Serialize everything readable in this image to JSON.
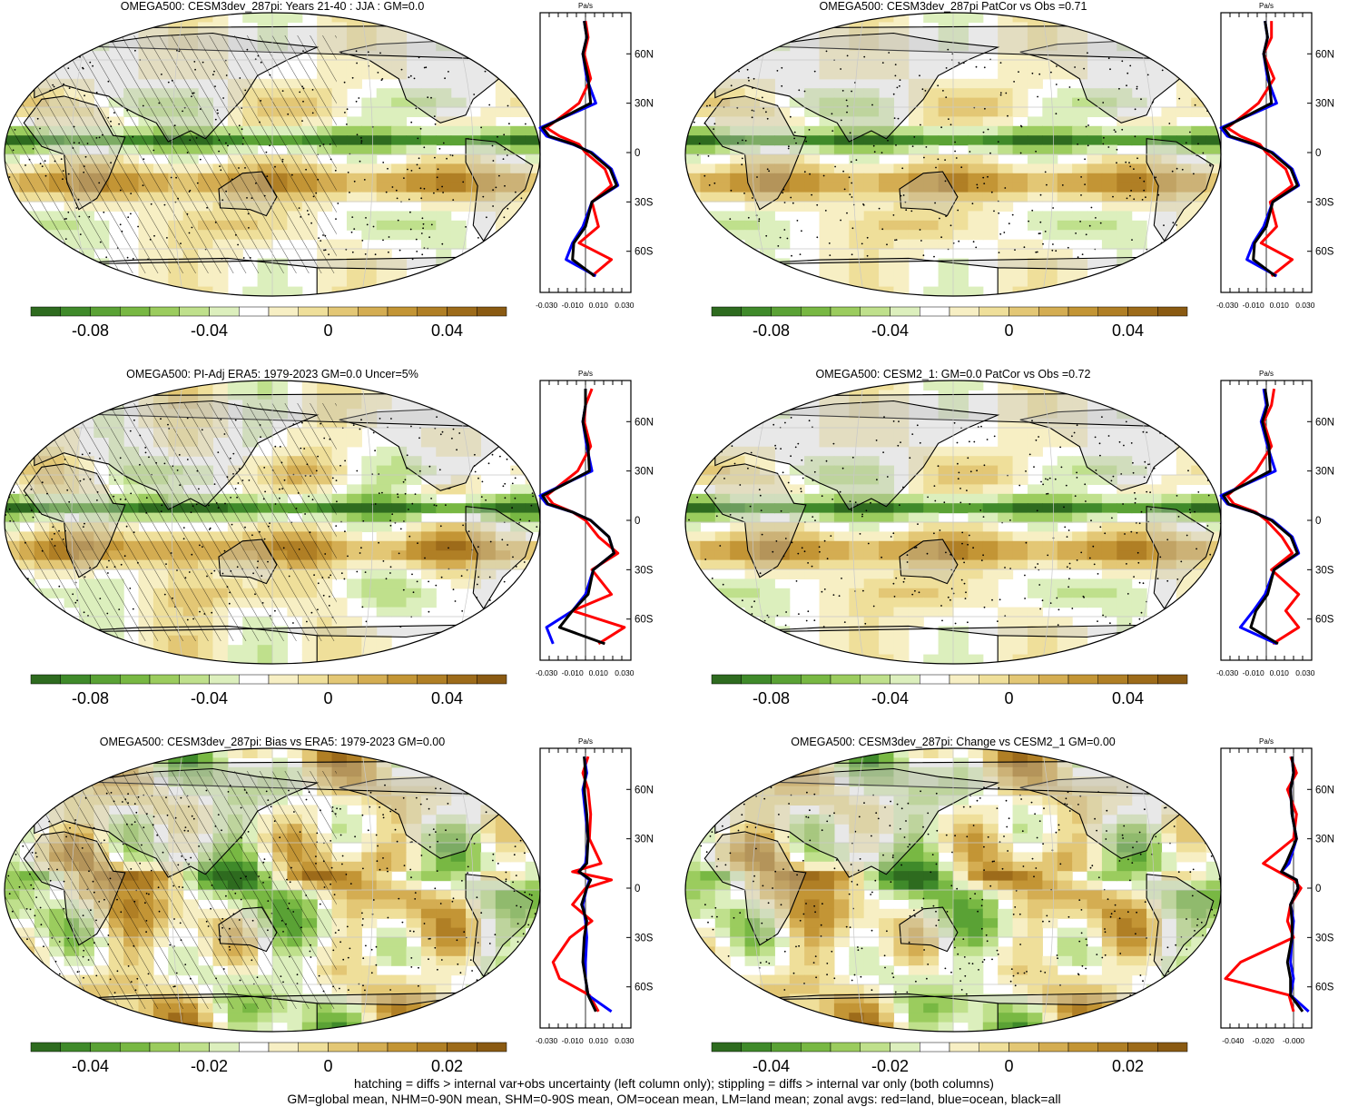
{
  "panels": [
    {
      "title": "OMEGA500: CESM3dev_287pi: Years 21-40 : JJA : GM=0.0",
      "hatching": true,
      "pattern": "model",
      "colorbar_ticks": [
        "-0.08",
        "-0.04",
        "0",
        "0.04",
        "0.08"
      ],
      "colorbar_range": [
        -0.11,
        0.11
      ],
      "zonal": {
        "unit": "Pa/s",
        "xticks": [
          "-0.030",
          "-0.010",
          "0.010",
          "0.030"
        ],
        "xlim": [
          -0.035,
          0.035
        ]
      }
    },
    {
      "title": "OMEGA500: CESM3dev_287pi PatCor vs Obs =0.71",
      "hatching": false,
      "pattern": "model",
      "colorbar_ticks": [
        "-0.08",
        "-0.04",
        "0",
        "0.04",
        "0.08"
      ],
      "colorbar_range": [
        -0.11,
        0.11
      ],
      "zonal": {
        "unit": "Pa/s",
        "xticks": [
          "-0.030",
          "-0.010",
          "0.010",
          "0.030"
        ],
        "xlim": [
          -0.035,
          0.035
        ]
      }
    },
    {
      "title": "OMEGA500: PI-Adj ERA5: 1979-2023 GM=0.0 Uncer=5%",
      "hatching": true,
      "pattern": "obs",
      "colorbar_ticks": [
        "-0.08",
        "-0.04",
        "0",
        "0.04",
        "0.08"
      ],
      "colorbar_range": [
        -0.11,
        0.11
      ],
      "zonal": {
        "unit": "Pa/s",
        "xticks": [
          "-0.030",
          "-0.010",
          "0.010",
          "0.030"
        ],
        "xlim": [
          -0.035,
          0.035
        ]
      }
    },
    {
      "title": "OMEGA500: CESM2_1: GM=0.0 PatCor vs Obs =0.72",
      "hatching": false,
      "pattern": "model",
      "colorbar_ticks": [
        "-0.08",
        "-0.04",
        "0",
        "0.04",
        "0.08"
      ],
      "colorbar_range": [
        -0.11,
        0.11
      ],
      "zonal": {
        "unit": "Pa/s",
        "xticks": [
          "-0.030",
          "-0.010",
          "0.010",
          "0.030"
        ],
        "xlim": [
          -0.035,
          0.035
        ]
      }
    },
    {
      "title": "OMEGA500: CESM3dev_287pi: Bias vs ERA5: 1979-2023 GM=0.00",
      "hatching": true,
      "pattern": "bias",
      "colorbar_ticks": [
        "-0.04",
        "-0.02",
        "0",
        "0.02",
        "0.04"
      ],
      "colorbar_range": [
        -0.055,
        0.055
      ],
      "zonal": {
        "unit": "Pa/s",
        "xticks": [
          "-0.030",
          "-0.010",
          "0.010",
          "0.030"
        ],
        "xlim": [
          -0.035,
          0.035
        ]
      }
    },
    {
      "title": "OMEGA500: CESM3dev_287pi: Change vs CESM2_1 GM=0.00",
      "hatching": false,
      "pattern": "bias",
      "colorbar_ticks": [
        "-0.04",
        "-0.02",
        "0",
        "0.02",
        "0.04"
      ],
      "colorbar_range": [
        -0.055,
        0.055
      ],
      "zonal": {
        "unit": "Pa/s",
        "xticks": [
          "-0.040",
          "-0.020",
          "-0.000"
        ],
        "xlim": [
          -0.048,
          0.012
        ]
      }
    }
  ],
  "zonal_yticks": [
    "60N",
    "30N",
    "0",
    "30S",
    "60S"
  ],
  "legend_colors": {
    "land": "#ff0000",
    "ocean": "#0000ff",
    "all": "#000000"
  },
  "footer": {
    "line1": "hatching = diffs > internal var+obs uncertainty (left column only); stippling = diffs > internal var only (both columns)",
    "line2": "GM=global mean, NHM=0-90N mean, SHM=0-90S mean, OM=ocean mean, LM=land mean; zonal avgs: red=land, blue=ocean, black=all"
  },
  "chart_data": [
    {
      "type": "heatmap",
      "title": "OMEGA500: CESM3dev_287pi: Years 21-40 : JJA : GM=0.0",
      "colorbar_ticks": [
        -0.08,
        -0.04,
        0,
        0.04,
        0.08
      ],
      "zonal_mean_series": [
        {
          "name": "land",
          "color": "red",
          "lat": [
            80,
            70,
            60,
            45,
            30,
            15,
            10,
            5,
            0,
            -10,
            -20,
            -30,
            -45,
            -55,
            -65,
            -75
          ],
          "values": [
            0.0,
            0.002,
            -0.001,
            0.004,
            -0.005,
            -0.03,
            -0.02,
            -0.005,
            0.0,
            0.015,
            0.02,
            0.005,
            0.01,
            -0.005,
            0.02,
            0.005
          ]
        },
        {
          "name": "ocean",
          "color": "blue",
          "lat": [
            80,
            70,
            60,
            45,
            30,
            15,
            10,
            5,
            0,
            -10,
            -20,
            -30,
            -45,
            -55,
            -65,
            -75
          ],
          "values": [
            -0.001,
            0.001,
            -0.002,
            0.001,
            0.008,
            -0.035,
            -0.03,
            -0.01,
            0.005,
            0.02,
            0.025,
            0.005,
            -0.002,
            -0.01,
            -0.015,
            0.008
          ]
        },
        {
          "name": "all",
          "color": "black",
          "lat": [
            80,
            70,
            60,
            45,
            30,
            15,
            10,
            5,
            0,
            -10,
            -20,
            -30,
            -45,
            -55,
            -65,
            -75
          ],
          "values": [
            -0.001,
            0.001,
            -0.002,
            0.002,
            0.004,
            -0.033,
            -0.028,
            -0.009,
            0.004,
            0.019,
            0.024,
            0.005,
            0.0,
            -0.009,
            -0.01,
            0.007
          ]
        }
      ]
    },
    {
      "type": "heatmap",
      "title": "OMEGA500: CESM3dev_287pi PatCor vs Obs =0.71",
      "colorbar_ticks": [
        -0.08,
        -0.04,
        0,
        0.04,
        0.08
      ],
      "zonal_mean_series": [
        {
          "name": "land",
          "color": "red",
          "lat": [
            80,
            70,
            60,
            45,
            30,
            15,
            10,
            5,
            0,
            -10,
            -20,
            -30,
            -45,
            -55,
            -65,
            -75
          ],
          "values": [
            0.004,
            0.004,
            -0.002,
            0.006,
            -0.006,
            -0.03,
            -0.02,
            -0.005,
            0.0,
            0.015,
            0.02,
            0.003,
            0.008,
            -0.004,
            0.02,
            0.004
          ]
        },
        {
          "name": "ocean",
          "color": "blue",
          "lat": [
            80,
            70,
            60,
            45,
            30,
            15,
            10,
            5,
            0,
            -10,
            -20,
            -30,
            -45,
            -55,
            -65,
            -75
          ],
          "values": [
            -0.001,
            0.001,
            -0.002,
            0.001,
            0.008,
            -0.035,
            -0.03,
            -0.01,
            0.005,
            0.02,
            0.025,
            0.005,
            -0.002,
            -0.01,
            -0.015,
            0.008
          ]
        },
        {
          "name": "all",
          "color": "black",
          "lat": [
            80,
            70,
            60,
            45,
            30,
            15,
            10,
            5,
            0,
            -10,
            -20,
            -30,
            -45,
            -55,
            -65,
            -75
          ],
          "values": [
            -0.001,
            0.001,
            -0.002,
            0.002,
            0.004,
            -0.033,
            -0.028,
            -0.009,
            0.004,
            0.019,
            0.024,
            0.005,
            0.0,
            -0.009,
            -0.01,
            0.007
          ]
        }
      ]
    },
    {
      "type": "heatmap",
      "title": "OMEGA500: PI-Adj ERA5: 1979-2023 GM=0.0 Uncer=5%",
      "colorbar_ticks": [
        -0.08,
        -0.04,
        0,
        0.04,
        0.08
      ],
      "zonal_mean_series": [
        {
          "name": "land",
          "color": "red",
          "lat": [
            80,
            70,
            60,
            45,
            30,
            15,
            10,
            5,
            0,
            -10,
            -20,
            -30,
            -45,
            -55,
            -65,
            -75
          ],
          "values": [
            0.005,
            0.0,
            -0.001,
            0.004,
            -0.006,
            -0.03,
            -0.025,
            -0.01,
            0.0,
            0.01,
            0.025,
            0.005,
            0.02,
            -0.01,
            0.03,
            0.01
          ]
        },
        {
          "name": "ocean",
          "color": "blue",
          "lat": [
            80,
            70,
            60,
            45,
            30,
            15,
            10,
            5,
            0,
            -10,
            -20,
            -30,
            -45,
            -55,
            -65,
            -75
          ],
          "values": [
            0.0,
            0.0,
            -0.002,
            0.001,
            0.005,
            -0.035,
            -0.03,
            -0.01,
            0.004,
            0.018,
            0.022,
            0.006,
            0.0,
            -0.01,
            -0.03,
            -0.025
          ]
        },
        {
          "name": "all",
          "color": "black",
          "lat": [
            80,
            70,
            60,
            45,
            30,
            15,
            10,
            5,
            0,
            -10,
            -20,
            -30,
            -45,
            -55,
            -65,
            -75
          ],
          "values": [
            0.0,
            0.0,
            -0.002,
            0.002,
            0.003,
            -0.033,
            -0.029,
            -0.01,
            0.004,
            0.018,
            0.022,
            0.006,
            0.002,
            -0.01,
            -0.02,
            0.015
          ]
        }
      ]
    },
    {
      "type": "heatmap",
      "title": "OMEGA500: CESM2_1: GM=0.0 PatCor vs Obs =0.72",
      "colorbar_ticks": [
        -0.08,
        -0.04,
        0,
        0.04,
        0.08
      ],
      "zonal_mean_series": [
        {
          "name": "land",
          "color": "red",
          "lat": [
            80,
            70,
            60,
            45,
            30,
            15,
            10,
            5,
            0,
            -10,
            -20,
            -30,
            -45,
            -55,
            -65,
            -75
          ],
          "values": [
            0.006,
            0.004,
            -0.002,
            0.004,
            -0.008,
            -0.03,
            -0.025,
            -0.008,
            0.0,
            0.012,
            0.02,
            0.004,
            0.025,
            0.015,
            0.025,
            0.005
          ]
        },
        {
          "name": "ocean",
          "color": "blue",
          "lat": [
            80,
            70,
            60,
            45,
            30,
            15,
            10,
            5,
            0,
            -10,
            -20,
            -30,
            -45,
            -55,
            -65,
            -75
          ],
          "values": [
            -0.002,
            0.0,
            -0.004,
            0.001,
            0.007,
            -0.035,
            -0.03,
            -0.01,
            0.005,
            0.02,
            0.025,
            0.006,
            -0.001,
            -0.01,
            -0.02,
            0.008
          ]
        },
        {
          "name": "all",
          "color": "black",
          "lat": [
            80,
            70,
            60,
            45,
            30,
            15,
            10,
            5,
            0,
            -10,
            -20,
            -30,
            -45,
            -55,
            -65,
            -75
          ],
          "values": [
            -0.001,
            0.001,
            -0.003,
            0.002,
            0.003,
            -0.033,
            -0.029,
            -0.01,
            0.004,
            0.019,
            0.024,
            0.006,
            0.001,
            -0.008,
            -0.012,
            0.009
          ]
        }
      ]
    },
    {
      "type": "heatmap",
      "title": "OMEGA500: CESM3dev_287pi: Bias vs ERA5: 1979-2023 GM=0.00",
      "colorbar_ticks": [
        -0.04,
        -0.02,
        0,
        0.02,
        0.04
      ],
      "zonal_mean_series": [
        {
          "name": "land",
          "color": "red",
          "lat": [
            80,
            70,
            60,
            45,
            30,
            15,
            10,
            5,
            0,
            -10,
            -20,
            -30,
            -45,
            -55,
            -65,
            -75
          ],
          "values": [
            0.002,
            -0.002,
            0.002,
            0.004,
            0.003,
            0.012,
            -0.01,
            0.02,
            0.0,
            -0.01,
            0.005,
            -0.012,
            -0.025,
            -0.02,
            0.003,
            0.01
          ]
        },
        {
          "name": "ocean",
          "color": "blue",
          "lat": [
            80,
            70,
            60,
            45,
            30,
            15,
            10,
            5,
            0,
            -10,
            -20,
            -30,
            -45,
            -55,
            -65,
            -75
          ],
          "values": [
            -0.001,
            0.001,
            -0.002,
            0.0,
            0.002,
            0.0,
            -0.005,
            0.003,
            0.001,
            -0.002,
            0.0,
            0.001,
            0.0,
            0.0,
            0.002,
            0.02
          ]
        },
        {
          "name": "all",
          "color": "black",
          "lat": [
            80,
            70,
            60,
            45,
            30,
            15,
            10,
            5,
            0,
            -10,
            -20,
            -30,
            -45,
            -55,
            -65,
            -75
          ],
          "values": [
            -0.001,
            0.0,
            -0.001,
            0.001,
            0.002,
            0.001,
            -0.005,
            0.004,
            0.001,
            -0.003,
            0.001,
            -0.001,
            -0.002,
            0.0,
            0.002,
            0.008
          ]
        }
      ]
    },
    {
      "type": "heatmap",
      "title": "OMEGA500: CESM3dev_287pi: Change vs CESM2_1 GM=0.00",
      "colorbar_ticks": [
        -0.04,
        -0.02,
        0,
        0.02,
        0.04
      ],
      "zonal_mean_series": [
        {
          "name": "land",
          "color": "red",
          "lat": [
            80,
            70,
            60,
            45,
            30,
            15,
            10,
            5,
            0,
            -10,
            -20,
            -30,
            -45,
            -55,
            -65,
            -75
          ],
          "values": [
            -0.002,
            0.002,
            -0.004,
            0.002,
            0.0,
            -0.02,
            -0.01,
            0.0,
            0.005,
            -0.002,
            -0.004,
            0.0,
            -0.035,
            -0.045,
            -0.003,
            0.0
          ]
        },
        {
          "name": "ocean",
          "color": "blue",
          "lat": [
            80,
            70,
            60,
            45,
            30,
            15,
            10,
            5,
            0,
            -10,
            -20,
            -30,
            -45,
            -55,
            -65,
            -75
          ],
          "values": [
            -0.001,
            0.0,
            -0.002,
            -0.001,
            0.002,
            -0.003,
            -0.008,
            0.002,
            0.003,
            -0.002,
            0.0,
            -0.001,
            -0.002,
            0.0,
            -0.002,
            0.01
          ]
        },
        {
          "name": "all",
          "color": "black",
          "lat": [
            80,
            70,
            60,
            45,
            30,
            15,
            10,
            5,
            0,
            -10,
            -20,
            -30,
            -45,
            -55,
            -65,
            -75
          ],
          "values": [
            -0.001,
            0.0,
            -0.002,
            -0.001,
            0.002,
            -0.005,
            -0.008,
            0.002,
            0.003,
            -0.002,
            -0.001,
            -0.001,
            -0.004,
            -0.002,
            -0.002,
            0.006
          ]
        }
      ]
    }
  ]
}
